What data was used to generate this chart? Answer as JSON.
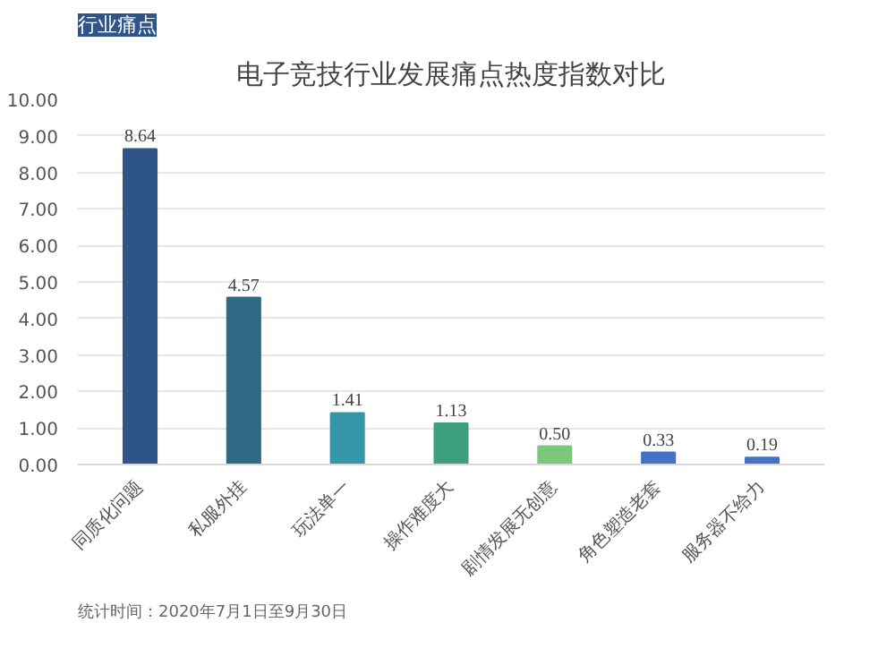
{
  "chart_data": {
    "type": "bar",
    "title": "电子竞技行业发展痛点热度指数对比",
    "categories": [
      "同质化问题",
      "私服外挂",
      "玩法单一",
      "操作难度大",
      "剧情发展无创意",
      "角色塑造老套",
      "服务器不给力"
    ],
    "values": [
      8.64,
      4.57,
      1.41,
      1.13,
      0.5,
      0.33,
      0.19
    ],
    "value_labels": [
      "8.64",
      "4.57",
      "1.41",
      "1.13",
      "0.50",
      "0.33",
      "0.19"
    ],
    "colors": [
      "#2e5488",
      "#2e6a86",
      "#3497a8",
      "#3e9e80",
      "#7bc87d",
      "#4472c4",
      "#4472c4"
    ],
    "ylim": [
      0,
      10
    ],
    "yticks": [
      {
        "value": 0,
        "label": "0.00"
      },
      {
        "value": 1,
        "label": "1.00"
      },
      {
        "value": 2,
        "label": "2.00"
      },
      {
        "value": 3,
        "label": "3.00"
      },
      {
        "value": 4,
        "label": "4.00"
      },
      {
        "value": 5,
        "label": "5.00"
      },
      {
        "value": 6,
        "label": "6.00"
      },
      {
        "value": 7,
        "label": "7.00"
      },
      {
        "value": 8,
        "label": "8.00"
      },
      {
        "value": 9,
        "label": "9.00"
      },
      {
        "value": 10,
        "label": "10.00"
      }
    ],
    "grid": "y",
    "annotations": [
      "行业痛点",
      "统计时间：2020年7月1日至9月30日"
    ]
  }
}
